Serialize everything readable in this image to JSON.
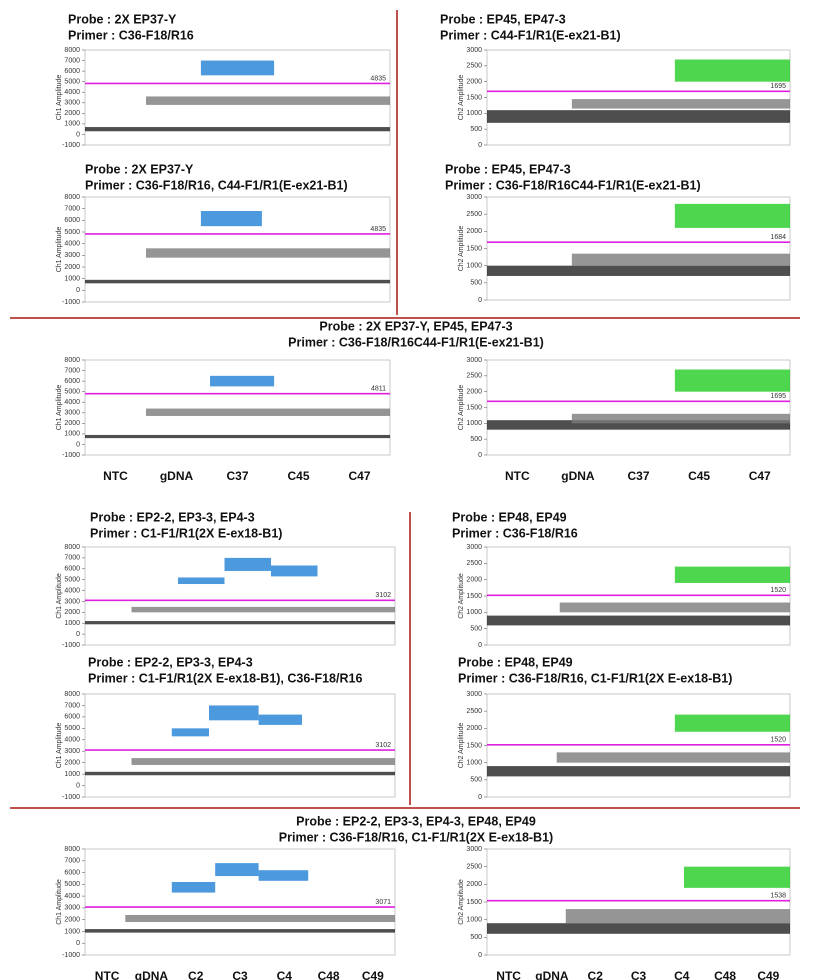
{
  "chart_data": [
    {
      "type": "scatter",
      "probe": "Probe : 2X EP37-Y",
      "primer": "Primer : C36-F18/R16",
      "ylabel": "Ch1 Amplitude",
      "xlim": [
        0,
        100
      ],
      "ylim": [
        -1000,
        8000
      ],
      "yticks": [
        -1000,
        0,
        1000,
        2000,
        3000,
        4000,
        5000,
        6000,
        7000,
        8000
      ],
      "threshold": 4835,
      "series": [
        {
          "color": "#222222",
          "x": [
            0,
            100
          ],
          "values": [
            300,
            700
          ]
        },
        {
          "color": "#7a7a7a",
          "x": [
            20,
            100
          ],
          "values": [
            2800,
            3600
          ]
        },
        {
          "color": "#1f7fd4",
          "x": [
            38,
            62
          ],
          "values": [
            5600,
            7000
          ]
        }
      ]
    },
    {
      "type": "scatter",
      "probe": "Probe : EP45, EP47-3",
      "primer": "Primer : C44-F1/R1(E-ex21-B1)",
      "ylabel": "Ch2 Amplitude",
      "xlim": [
        0,
        100
      ],
      "ylim": [
        0,
        3000
      ],
      "yticks": [
        0,
        500,
        1000,
        1500,
        2000,
        2500,
        3000
      ],
      "threshold": 1695,
      "series": [
        {
          "color": "#222222",
          "x": [
            0,
            100
          ],
          "values": [
            700,
            1100
          ]
        },
        {
          "color": "#7a7a7a",
          "x": [
            28,
            100
          ],
          "values": [
            1150,
            1450
          ]
        },
        {
          "color": "#22cc22",
          "x": [
            62,
            100
          ],
          "values": [
            2000,
            2700
          ]
        }
      ]
    },
    {
      "type": "scatter",
      "probe": "Probe : 2X EP37-Y",
      "primer": "Primer : C36-F18/R16, C44-F1/R1(E-ex21-B1)",
      "ylabel": "Ch1 Amplitude",
      "xlim": [
        0,
        100
      ],
      "ylim": [
        -1000,
        8000
      ],
      "yticks": [
        -1000,
        0,
        1000,
        2000,
        3000,
        4000,
        5000,
        6000,
        7000,
        8000
      ],
      "threshold": 4835,
      "series": [
        {
          "color": "#222222",
          "x": [
            0,
            100
          ],
          "values": [
            600,
            900
          ]
        },
        {
          "color": "#7a7a7a",
          "x": [
            20,
            100
          ],
          "values": [
            2800,
            3600
          ]
        },
        {
          "color": "#1f7fd4",
          "x": [
            38,
            58
          ],
          "values": [
            5500,
            6800
          ]
        }
      ]
    },
    {
      "type": "scatter",
      "probe": "Probe : EP45, EP47-3",
      "primer": "Primer : C36-F18/R16C44-F1/R1(E-ex21-B1)",
      "ylabel": "Ch2 Amplitude",
      "xlim": [
        0,
        100
      ],
      "ylim": [
        0,
        3000
      ],
      "yticks": [
        0,
        500,
        1000,
        1500,
        2000,
        2500,
        3000
      ],
      "threshold": 1684,
      "series": [
        {
          "color": "#222222",
          "x": [
            0,
            100
          ],
          "values": [
            700,
            1000
          ]
        },
        {
          "color": "#7a7a7a",
          "x": [
            28,
            100
          ],
          "values": [
            1000,
            1350
          ]
        },
        {
          "color": "#22cc22",
          "x": [
            62,
            100
          ],
          "values": [
            2100,
            2800
          ]
        }
      ]
    },
    {
      "type": "scatter",
      "ylabel": "Ch1 Amplitude",
      "categories": [
        "NTC",
        "gDNA",
        "C37",
        "C45",
        "C47"
      ],
      "xlim": [
        0,
        100
      ],
      "ylim": [
        -1000,
        8000
      ],
      "yticks": [
        -1000,
        0,
        1000,
        2000,
        3000,
        4000,
        5000,
        6000,
        7000,
        8000
      ],
      "threshold": 4811,
      "series": [
        {
          "color": "#222222",
          "x": [
            0,
            100
          ],
          "values": [
            600,
            900
          ]
        },
        {
          "color": "#7a7a7a",
          "x": [
            20,
            100
          ],
          "values": [
            2700,
            3400
          ]
        },
        {
          "color": "#1f7fd4",
          "x": [
            41,
            62
          ],
          "values": [
            5500,
            6500
          ]
        }
      ]
    },
    {
      "type": "scatter",
      "ylabel": "Ch2 Amplitude",
      "categories": [
        "NTC",
        "gDNA",
        "C37",
        "C45",
        "C47"
      ],
      "xlim": [
        0,
        100
      ],
      "ylim": [
        0,
        3000
      ],
      "yticks": [
        0,
        500,
        1000,
        1500,
        2000,
        2500,
        3000
      ],
      "threshold": 1695,
      "series": [
        {
          "color": "#222222",
          "x": [
            0,
            100
          ],
          "values": [
            800,
            1100
          ]
        },
        {
          "color": "#7a7a7a",
          "x": [
            28,
            100
          ],
          "values": [
            1000,
            1300
          ]
        },
        {
          "color": "#22cc22",
          "x": [
            62,
            100
          ],
          "values": [
            2000,
            2700
          ]
        }
      ]
    },
    {
      "type": "scatter",
      "probe": "Probe : EP2-2, EP3-3, EP4-3",
      "primer": "Primer : C1-F1/R1(2X E-ex18-B1)",
      "ylabel": "Ch1 Amplitude",
      "xlim": [
        0,
        100
      ],
      "ylim": [
        -1000,
        8000
      ],
      "yticks": [
        -1000,
        0,
        1000,
        2000,
        3000,
        4000,
        5000,
        6000,
        7000,
        8000
      ],
      "threshold": 3102,
      "series": [
        {
          "color": "#222222",
          "x": [
            0,
            100
          ],
          "values": [
            900,
            1200
          ]
        },
        {
          "color": "#7a7a7a",
          "x": [
            15,
            100
          ],
          "values": [
            2000,
            2500
          ]
        },
        {
          "color": "#1f7fd4",
          "x": [
            30,
            45
          ],
          "values": [
            4600,
            5200
          ]
        },
        {
          "color": "#1f7fd4",
          "x": [
            45,
            60
          ],
          "values": [
            5800,
            7000
          ]
        },
        {
          "color": "#1f7fd4",
          "x": [
            60,
            75
          ],
          "values": [
            5300,
            6300
          ]
        }
      ]
    },
    {
      "type": "scatter",
      "probe": "Probe : EP48, EP49",
      "primer": "Primer : C36-F18/R16",
      "ylabel": "Ch2 Amplitude",
      "xlim": [
        0,
        100
      ],
      "ylim": [
        0,
        3000
      ],
      "yticks": [
        0,
        500,
        1000,
        1500,
        2000,
        2500,
        3000
      ],
      "threshold": 1520,
      "series": [
        {
          "color": "#222222",
          "x": [
            0,
            100
          ],
          "values": [
            600,
            900
          ]
        },
        {
          "color": "#7a7a7a",
          "x": [
            24,
            100
          ],
          "values": [
            1000,
            1300
          ]
        },
        {
          "color": "#22cc22",
          "x": [
            62,
            100
          ],
          "values": [
            1900,
            2400
          ]
        }
      ]
    },
    {
      "type": "scatter",
      "probe": "Probe : EP2-2, EP3-3, EP4-3",
      "primer": "Primer : C1-F1/R1(2X E-ex18-B1), C36-F18/R16",
      "ylabel": "Ch1 Amplitude",
      "xlim": [
        0,
        100
      ],
      "ylim": [
        -1000,
        8000
      ],
      "yticks": [
        -1000,
        0,
        1000,
        2000,
        3000,
        4000,
        5000,
        6000,
        7000,
        8000
      ],
      "threshold": 3102,
      "series": [
        {
          "color": "#222222",
          "x": [
            0,
            100
          ],
          "values": [
            900,
            1200
          ]
        },
        {
          "color": "#7a7a7a",
          "x": [
            15,
            100
          ],
          "values": [
            1800,
            2400
          ]
        },
        {
          "color": "#1f7fd4",
          "x": [
            28,
            40
          ],
          "values": [
            4300,
            5000
          ]
        },
        {
          "color": "#1f7fd4",
          "x": [
            40,
            56
          ],
          "values": [
            5700,
            7000
          ]
        },
        {
          "color": "#1f7fd4",
          "x": [
            56,
            70
          ],
          "values": [
            5300,
            6200
          ]
        }
      ]
    },
    {
      "type": "scatter",
      "probe": "Probe : EP48, EP49",
      "primer": "Primer : C36-F18/R16,  C1-F1/R1(2X  E-ex18-B1)",
      "ylabel": "Ch2 Amplitude",
      "xlim": [
        0,
        100
      ],
      "ylim": [
        0,
        3000
      ],
      "yticks": [
        0,
        500,
        1000,
        1500,
        2000,
        2500,
        3000
      ],
      "threshold": 1520,
      "series": [
        {
          "color": "#222222",
          "x": [
            0,
            100
          ],
          "values": [
            600,
            900
          ]
        },
        {
          "color": "#7a7a7a",
          "x": [
            23,
            100
          ],
          "values": [
            1000,
            1300
          ]
        },
        {
          "color": "#22cc22",
          "x": [
            62,
            100
          ],
          "values": [
            1900,
            2400
          ]
        }
      ]
    },
    {
      "type": "scatter",
      "ylabel": "Ch1 Amplitude",
      "categories": [
        "NTC",
        "gDNA",
        "C2",
        "C3",
        "C4",
        "C48",
        "C49"
      ],
      "xlim": [
        0,
        100
      ],
      "ylim": [
        -1000,
        8000
      ],
      "yticks": [
        -1000,
        0,
        1000,
        2000,
        3000,
        4000,
        5000,
        6000,
        7000,
        8000
      ],
      "threshold": 3071,
      "series": [
        {
          "color": "#222222",
          "x": [
            0,
            100
          ],
          "values": [
            900,
            1200
          ]
        },
        {
          "color": "#7a7a7a",
          "x": [
            13,
            100
          ],
          "values": [
            1800,
            2400
          ]
        },
        {
          "color": "#1f7fd4",
          "x": [
            28,
            42
          ],
          "values": [
            4300,
            5200
          ]
        },
        {
          "color": "#1f7fd4",
          "x": [
            42,
            56
          ],
          "values": [
            5700,
            6800
          ]
        },
        {
          "color": "#1f7fd4",
          "x": [
            56,
            72
          ],
          "values": [
            5300,
            6200
          ]
        }
      ]
    },
    {
      "type": "scatter",
      "ylabel": "Ch2 Amplitude",
      "categories": [
        "NTC",
        "gDNA",
        "C2",
        "C3",
        "C4",
        "C48",
        "C49"
      ],
      "xlim": [
        0,
        100
      ],
      "ylim": [
        0,
        3000
      ],
      "yticks": [
        0,
        500,
        1000,
        1500,
        2000,
        2500,
        3000
      ],
      "threshold": 1538,
      "series": [
        {
          "color": "#222222",
          "x": [
            0,
            100
          ],
          "values": [
            600,
            900
          ]
        },
        {
          "color": "#7a7a7a",
          "x": [
            26,
            100
          ],
          "values": [
            900,
            1300
          ]
        },
        {
          "color": "#22cc22",
          "x": [
            65,
            100
          ],
          "values": [
            1900,
            2500
          ]
        }
      ]
    }
  ],
  "section_titles": [
    {
      "probe": "Probe : 2X EP37-Y, EP45, EP47-3",
      "primer": "Primer : C36-F18/R16C44-F1/R1(E-ex21-B1)"
    },
    {
      "probe": "Probe : EP2-2, EP3-3, EP4-3, EP48, EP49",
      "primer": "Primer : C36-F18/R16,  C1-F1/R1(2X E-ex18-B1)"
    }
  ]
}
